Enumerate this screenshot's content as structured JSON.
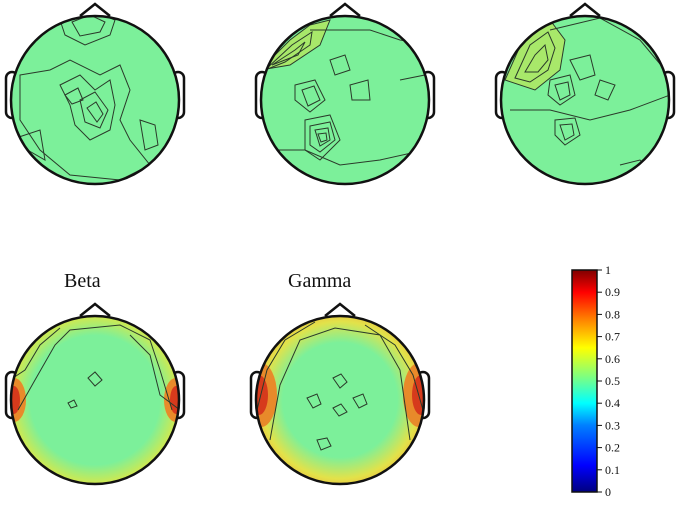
{
  "maps": [
    {
      "label": "",
      "accent": "#b8d84c"
    },
    {
      "label": "",
      "accent": "#b8d84c"
    },
    {
      "label": "",
      "accent": "#b8d84c"
    },
    {
      "label": "Beta",
      "accent": "#e8c23c"
    },
    {
      "label": "Gamma",
      "accent": "#e37a2a"
    }
  ],
  "colorbar": {
    "ticks": [
      "1",
      "0.9",
      "0.8",
      "0.7",
      "0.6",
      "0.5",
      "0.4",
      "0.3",
      "0.2",
      "0.1",
      "0"
    ],
    "colormap": [
      "#00007f",
      "#0000ff",
      "#007fff",
      "#00ffff",
      "#7fff7f",
      "#ffff00",
      "#ff7f00",
      "#ff0000",
      "#7f0000"
    ]
  }
}
